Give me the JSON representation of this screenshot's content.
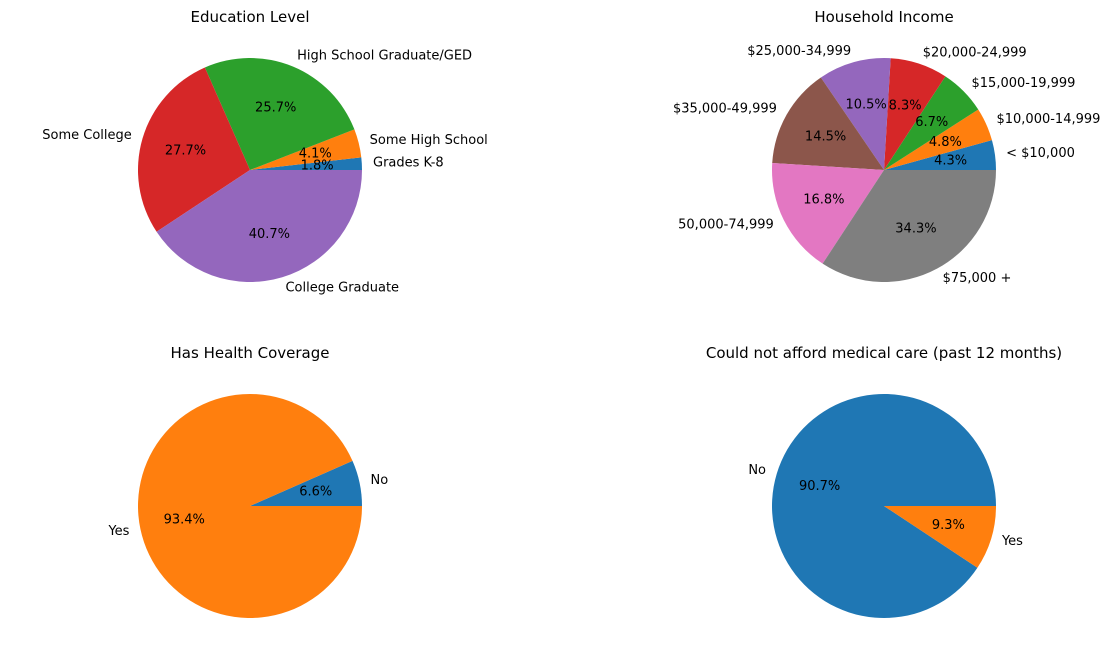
{
  "chart_data": [
    {
      "type": "pie",
      "title": "Education Level",
      "labels": [
        "Grades K-8",
        "Some High School",
        "High School Graduate/GED",
        "Some College",
        "College Graduate"
      ],
      "values": [
        1.8,
        4.1,
        25.7,
        27.7,
        40.7
      ],
      "percent_labels": [
        "1.8%",
        "4.1%",
        "25.7%",
        "27.7%",
        "40.7%"
      ],
      "colors": [
        "#1f77b4",
        "#ff7f0e",
        "#2ca02c",
        "#d62728",
        "#9467bd"
      ],
      "start_angle_deg": 0,
      "direction": "counterclockwise"
    },
    {
      "type": "pie",
      "title": "Household Income",
      "labels": [
        "< $10,000",
        "$10,000-14,999",
        "$15,000-19,999",
        "$20,000-24,999",
        "$25,000-34,999",
        "$35,000-49,999",
        "50,000-74,999",
        "$75,000 +"
      ],
      "values": [
        4.3,
        4.8,
        6.7,
        8.3,
        10.5,
        14.5,
        16.8,
        34.3
      ],
      "percent_labels": [
        "4.3%",
        "4.8%",
        "6.7%",
        "8.3%",
        "10.5%",
        "14.5%",
        "16.8%",
        "34.3%"
      ],
      "colors": [
        "#1f77b4",
        "#ff7f0e",
        "#2ca02c",
        "#d62728",
        "#9467bd",
        "#8c564b",
        "#e377c2",
        "#7f7f7f"
      ],
      "start_angle_deg": 0,
      "direction": "counterclockwise"
    },
    {
      "type": "pie",
      "title": "Has Health Coverage",
      "labels": [
        "No",
        "Yes"
      ],
      "values": [
        6.6,
        93.4
      ],
      "percent_labels": [
        "6.6%",
        "93.4%"
      ],
      "colors": [
        "#1f77b4",
        "#ff7f0e"
      ],
      "start_angle_deg": 0,
      "direction": "counterclockwise"
    },
    {
      "type": "pie",
      "title": "Could not afford medical care (past 12 months)",
      "labels": [
        "No",
        "Yes"
      ],
      "values": [
        90.7,
        9.3
      ],
      "percent_labels": [
        "90.7%",
        "9.3%"
      ],
      "colors": [
        "#1f77b4",
        "#ff7f0e"
      ],
      "start_angle_deg": 0,
      "direction": "counterclockwise"
    }
  ]
}
